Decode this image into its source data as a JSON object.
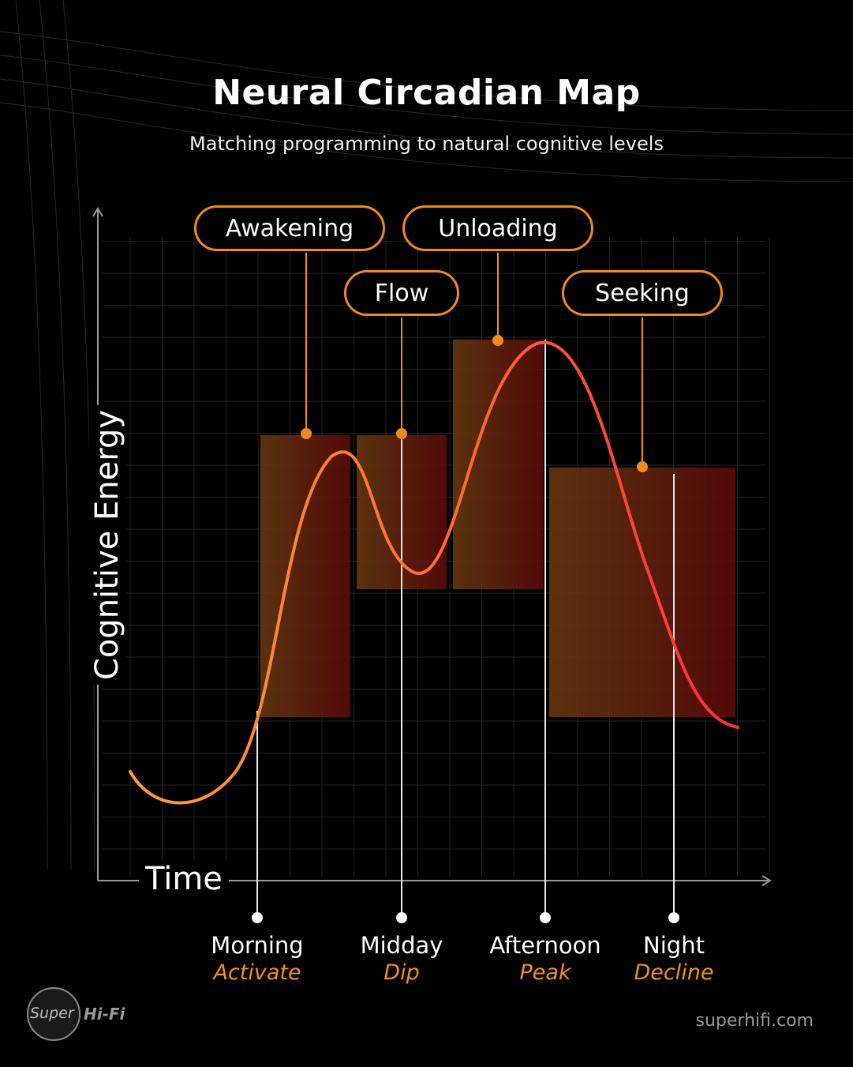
{
  "title": "Neural Circadian Map",
  "subtitle": "Matching programming to natural cognitive levels",
  "axes": {
    "y_label": "Cognitive Energy",
    "x_label": "Time"
  },
  "callouts": [
    {
      "label": "Awakening"
    },
    {
      "label": "Flow"
    },
    {
      "label": "Unloading"
    },
    {
      "label": "Seeking"
    }
  ],
  "time_periods": [
    {
      "label": "Morning",
      "sub": "Activate"
    },
    {
      "label": "Midday",
      "sub": "Dip"
    },
    {
      "label": "Afternoon",
      "sub": "Peak"
    },
    {
      "label": "Night",
      "sub": "Decline"
    }
  ],
  "brand": {
    "logo_text": "Super",
    "name": "Hi-Fi",
    "website": "superhifi.com"
  },
  "colors": {
    "accent": "#f08a1a",
    "curve_start": "#ff9a3a",
    "curve_end": "#ff2e3a",
    "block_dark": "#5a0d0d"
  }
}
